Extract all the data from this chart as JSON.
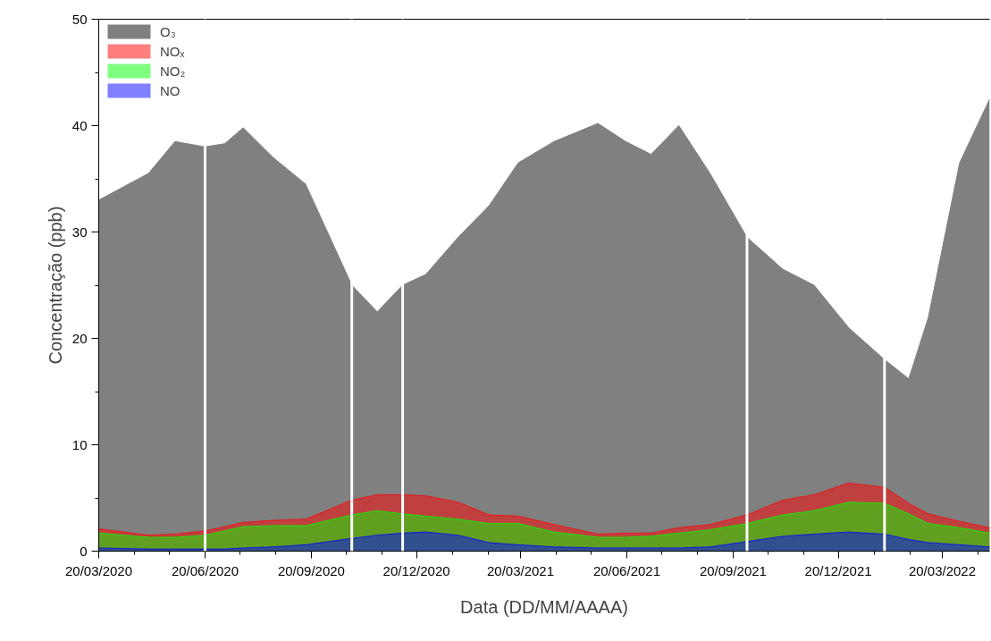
{
  "chart_data": {
    "type": "area",
    "xlabel": "Data (DD/MM/AAAA)",
    "ylabel": "Concentração (ppb)",
    "x": [
      "2020-03-20",
      "2020-05-02",
      "2020-05-25",
      "2020-06-20",
      "2020-07-07",
      "2020-07-23",
      "2020-08-18",
      "2020-09-15",
      "2020-10-25",
      "2020-11-16",
      "2020-12-08",
      "2020-12-28",
      "2021-01-25",
      "2021-02-21",
      "2021-03-18",
      "2021-04-18",
      "2021-05-26",
      "2021-06-19",
      "2021-07-11",
      "2021-08-04",
      "2021-08-31",
      "2021-10-02",
      "2021-11-02",
      "2021-11-29",
      "2021-12-29",
      "2022-01-29",
      "2022-02-19",
      "2022-03-08",
      "2022-04-04",
      "2022-04-30"
    ],
    "series": [
      {
        "name": "O₃",
        "color": "#808080",
        "values": [
          33,
          35.5,
          38.5,
          38,
          38.3,
          39.8,
          37,
          34.5,
          25,
          22.5,
          25,
          26,
          29.5,
          32.5,
          36.5,
          38.5,
          40.2,
          38.5,
          37.3,
          40,
          35.5,
          29.5,
          26.5,
          25,
          21,
          18,
          16.2,
          22,
          36.5,
          42.5
        ]
      },
      {
        "name": "NOₓ",
        "color": "#ff0000",
        "values": [
          2.1,
          1.5,
          1.6,
          1.9,
          2.3,
          2.7,
          2.9,
          3.0,
          4.8,
          5.3,
          5.3,
          5.2,
          4.6,
          3.4,
          3.3,
          2.5,
          1.6,
          1.7,
          1.7,
          2.2,
          2.5,
          3.4,
          4.8,
          5.3,
          6.4,
          6.0,
          4.5,
          3.5,
          2.8,
          2.2
        ]
      },
      {
        "name": "NO₂",
        "color": "#00ff00",
        "values": [
          1.7,
          1.3,
          1.3,
          1.5,
          1.9,
          2.3,
          2.4,
          2.4,
          3.4,
          3.8,
          3.5,
          3.3,
          3.0,
          2.6,
          2.6,
          1.8,
          1.3,
          1.3,
          1.4,
          1.7,
          2.0,
          2.6,
          3.4,
          3.8,
          4.6,
          4.5,
          3.5,
          2.6,
          2.2,
          1.7
        ]
      },
      {
        "name": "NO",
        "color": "#0000ff",
        "values": [
          0.3,
          0.2,
          0.2,
          0.2,
          0.2,
          0.3,
          0.4,
          0.6,
          1.2,
          1.5,
          1.7,
          1.8,
          1.5,
          0.8,
          0.6,
          0.4,
          0.3,
          0.3,
          0.3,
          0.3,
          0.4,
          0.9,
          1.4,
          1.6,
          1.8,
          1.6,
          1.1,
          0.8,
          0.6,
          0.4
        ]
      }
    ],
    "xlim": [
      "2020-03-20",
      "2022-04-30"
    ],
    "xticks": [
      {
        "value": "2020-03-20",
        "label": "20/03/2020"
      },
      {
        "value": "2020-04-20",
        "label": null
      },
      {
        "value": "2020-05-20",
        "label": null
      },
      {
        "value": "2020-06-20",
        "label": "20/06/2020"
      },
      {
        "value": "2020-07-20",
        "label": null
      },
      {
        "value": "2020-08-20",
        "label": null
      },
      {
        "value": "2020-09-20",
        "label": "20/09/2020"
      },
      {
        "value": "2020-10-20",
        "label": null
      },
      {
        "value": "2020-11-20",
        "label": null
      },
      {
        "value": "2020-12-20",
        "label": "20/12/2020"
      },
      {
        "value": "2021-01-20",
        "label": null
      },
      {
        "value": "2021-02-20",
        "label": null
      },
      {
        "value": "2021-03-20",
        "label": "20/03/2021"
      },
      {
        "value": "2021-04-20",
        "label": null
      },
      {
        "value": "2021-05-20",
        "label": null
      },
      {
        "value": "2021-06-20",
        "label": "20/06/2021"
      },
      {
        "value": "2021-07-20",
        "label": null
      },
      {
        "value": "2021-08-20",
        "label": null
      },
      {
        "value": "2021-09-20",
        "label": "20/09/2021"
      },
      {
        "value": "2021-10-20",
        "label": null
      },
      {
        "value": "2021-11-20",
        "label": null
      },
      {
        "value": "2021-12-20",
        "label": "20/12/2021"
      },
      {
        "value": "2022-01-20",
        "label": null
      },
      {
        "value": "2022-02-20",
        "label": null
      },
      {
        "value": "2022-03-20",
        "label": "20/03/2022"
      },
      {
        "value": "2022-04-20",
        "label": null
      }
    ],
    "ylim": [
      0,
      50
    ],
    "yticks": [
      0,
      {
        "value": 5,
        "label": null
      },
      10,
      {
        "value": 15,
        "label": null
      },
      20,
      {
        "value": 25,
        "label": null
      },
      30,
      {
        "value": 35,
        "label": null
      },
      40,
      {
        "value": 45,
        "label": null
      },
      50
    ],
    "ref_lines": [
      {
        "axis": "x",
        "value": "2020-06-20",
        "color": "#ffffff"
      },
      {
        "axis": "x",
        "value": "2020-10-25",
        "color": "#ffffff"
      },
      {
        "axis": "x",
        "value": "2020-12-08",
        "color": "#ffffff"
      },
      {
        "axis": "x",
        "value": "2021-10-02",
        "color": "#ffffff"
      },
      {
        "axis": "x",
        "value": "2022-01-29",
        "color": "#ffffff"
      }
    ],
    "grid": false,
    "legend": "top left"
  }
}
